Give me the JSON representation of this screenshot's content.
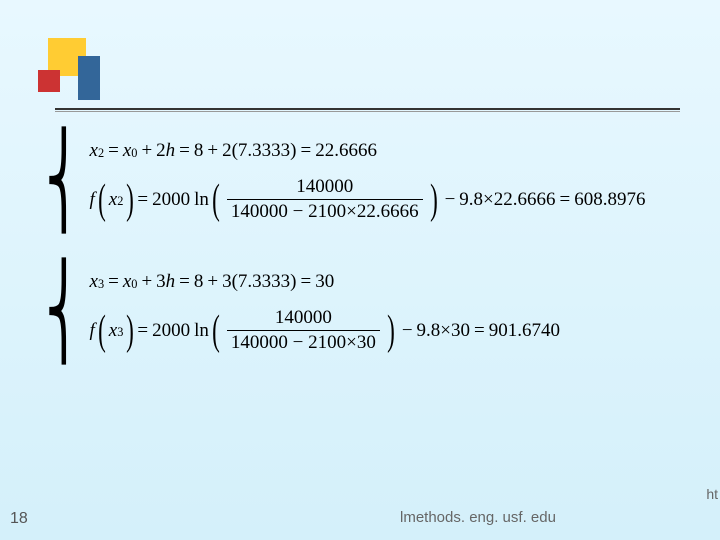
{
  "page_number": "18",
  "footer_url": "lmethods. eng. usf. edu",
  "footer_right_fragment": "ht",
  "eq1": {
    "line1": {
      "var": "x",
      "sub": "2",
      "expr_a": "x",
      "sub_a": "0",
      "expr_b": "2",
      "var_h": "h",
      "num_a": "8",
      "num_b": "2",
      "num_c": "7.3333",
      "result": "22.6666"
    },
    "line2": {
      "fn": "f",
      "arg_var": "x",
      "arg_sub": "2",
      "coef": "2000",
      "ln": "ln",
      "frac_num": "140000",
      "frac_den_a": "140000",
      "frac_den_b": "2100",
      "frac_den_c": "22.6666",
      "tail_a": "9.8",
      "tail_b": "22.6666",
      "result": "608.8976"
    }
  },
  "eq2": {
    "line1": {
      "var": "x",
      "sub": "3",
      "expr_a": "x",
      "sub_a": "0",
      "expr_b": "3",
      "var_h": "h",
      "num_a": "8",
      "num_b": "3",
      "num_c": "7.3333",
      "result": "30"
    },
    "line2": {
      "fn": "f",
      "arg_var": "x",
      "arg_sub": "3",
      "coef": "2000",
      "ln": "ln",
      "frac_num": "140000",
      "frac_den_a": "140000",
      "frac_den_b": "2100",
      "frac_den_c": "30",
      "tail_a": "9.8",
      "tail_b": "30",
      "result": "901.6740"
    }
  },
  "style": {
    "background_gradient_top": "#e8f8ff",
    "background_gradient_bottom": "#d4f0fa",
    "logo_yellow": "#ffcc33",
    "logo_red": "#cc3333",
    "logo_blue": "#336699",
    "rule_color": "#333333",
    "text_color": "#000000",
    "font": "Times New Roman",
    "font_size_pt": 14
  }
}
